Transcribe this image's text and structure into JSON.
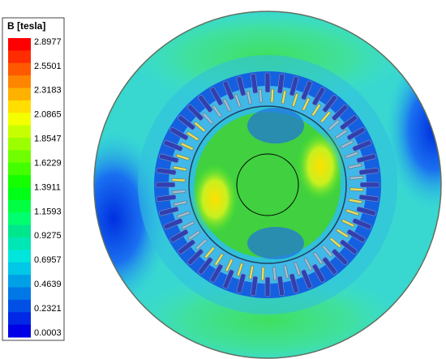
{
  "legend": {
    "title": "B [tesla]",
    "labels": [
      "2.8977",
      "2.5501",
      "2.3183",
      "2.0865",
      "1.8547",
      "1.6229",
      "1.3911",
      "1.1593",
      "0.9275",
      "0.6957",
      "0.4639",
      "0.2321",
      "0.0003"
    ]
  }
}
